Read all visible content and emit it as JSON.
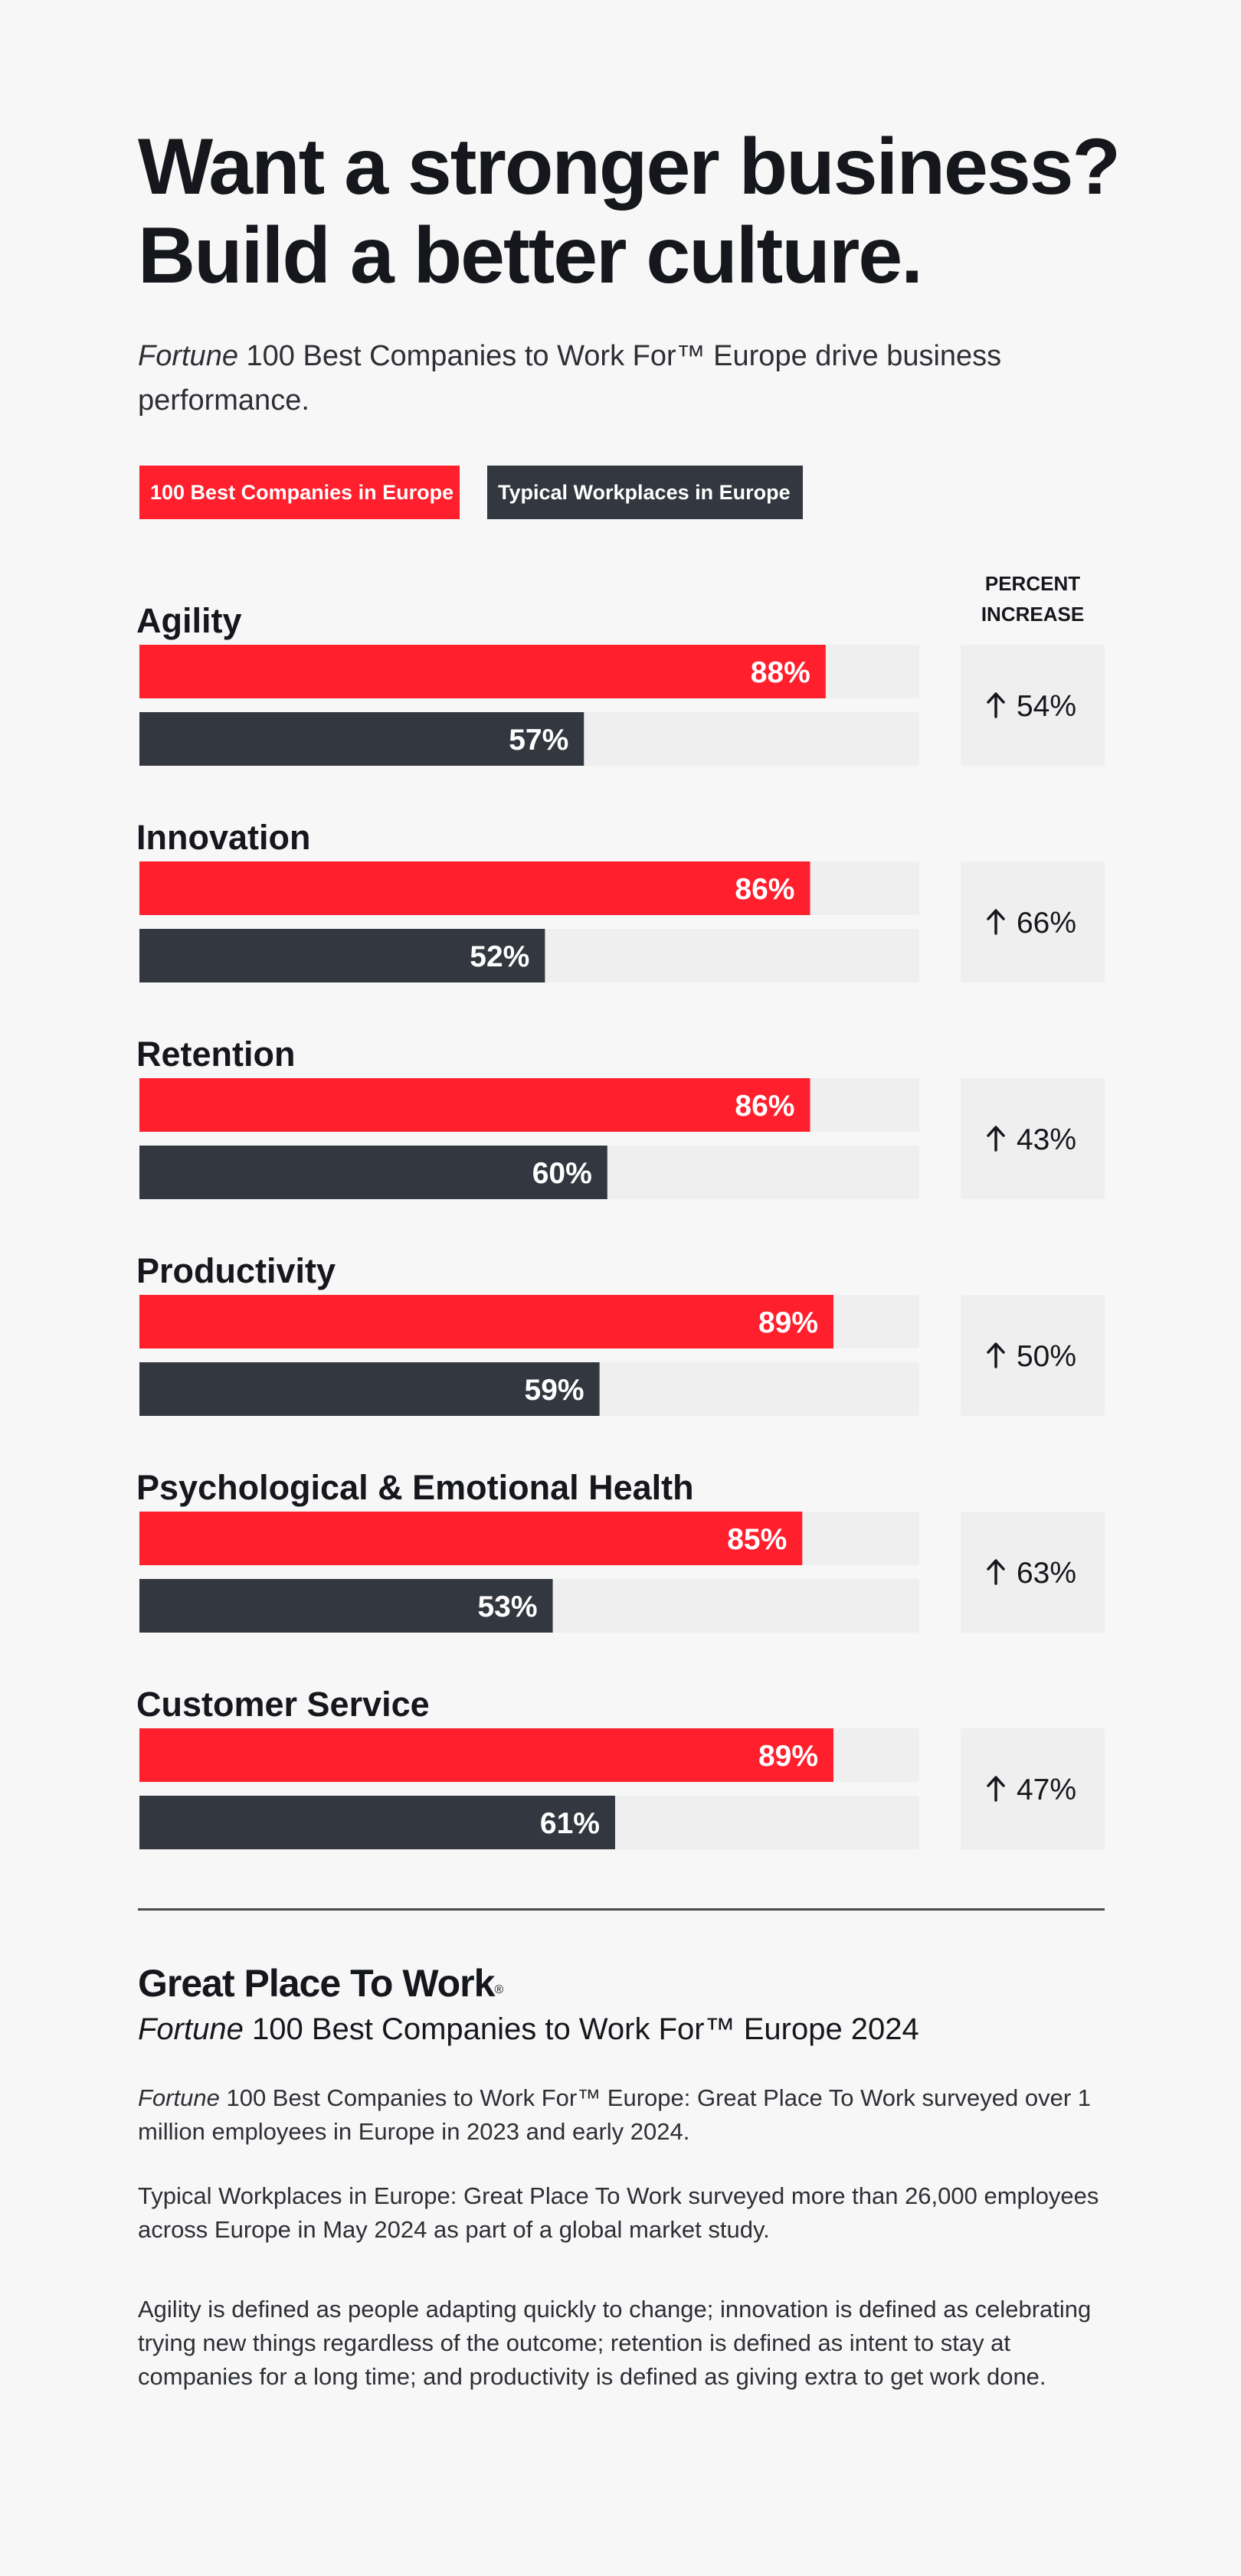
{
  "header": {
    "title_line1": "Want a stronger business?",
    "title_line2": "Build a better culture.",
    "subtitle_italic": "Fortune",
    "subtitle_rest": " 100 Best Companies to Work For™ Europe drive business performance."
  },
  "colors": {
    "best": "#ff1f2d",
    "typical": "#33373f",
    "track": "#eeefee",
    "increase_box": "#eeefee"
  },
  "chart_data": {
    "type": "bar",
    "orientation": "horizontal",
    "xlim": [
      0,
      100
    ],
    "grid": false,
    "legend_position": "top-left",
    "percent_increase_header": "PERCENT INCREASE",
    "categories": [
      "Agility",
      "Innovation",
      "Retention",
      "Productivity",
      "Psychological & Emotional Health",
      "Customer Service"
    ],
    "series": [
      {
        "name": "100 Best Companies in Europe",
        "color": "#ff1f2d",
        "values": [
          88,
          86,
          86,
          89,
          85,
          89
        ]
      },
      {
        "name": "Typical Workplaces in Europe",
        "color": "#33373f",
        "values": [
          57,
          52,
          60,
          59,
          53,
          61
        ]
      }
    ],
    "percent_increase": [
      "54%",
      "66%",
      "43%",
      "50%",
      "63%",
      "47%"
    ]
  },
  "footer": {
    "brand": "Great Place To Work",
    "brand_mark": "®",
    "list_italic": "Fortune",
    "list_rest": " 100 Best Companies to Work For™ Europe 2024",
    "note1_italic": "Fortune",
    "note1_rest": " 100 Best Companies to Work For™ Europe: Great Place To Work surveyed over 1 million employees in Europe in 2023 and early 2024.",
    "note2": "Typical Workplaces in Europe: Great Place To Work surveyed more than 26,000 employees across Europe in May 2024 as part of a global market study.",
    "note3": "Agility is defined as people adapting quickly to change; innovation is defined as celebrating trying new things regardless of the outcome; retention is defined as intent to stay at companies for a long time; and productivity is defined as giving extra to get work done."
  }
}
